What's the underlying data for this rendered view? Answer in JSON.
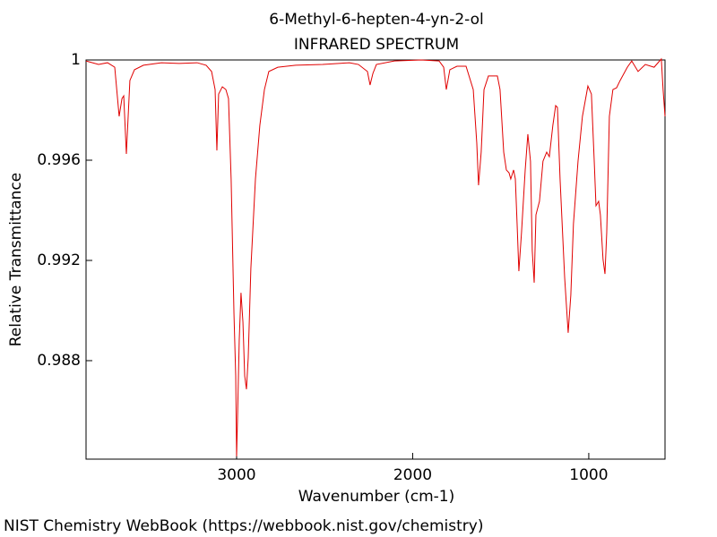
{
  "chart_data": {
    "type": "line",
    "title": "6-Methyl-6-hepten-4-yn-2-ol",
    "subtitle": "INFRARED SPECTRUM",
    "x_label": "Wavenumber (cm-1)",
    "y_label": "Relative Transmittance",
    "footer": "NIST Chemistry WebBook (https://webbook.nist.gov/chemistry)",
    "xlim": [
      3855,
      567
    ],
    "ylim": [
      0.98407,
      1
    ],
    "xticks": [
      3000,
      2000,
      1000
    ],
    "yticks": [
      0.988,
      0.992,
      0.996,
      1
    ],
    "grid": false,
    "series": [
      {
        "color": "#e00000",
        "x": [
          3855,
          3784,
          3733,
          3692,
          3667,
          3651,
          3641,
          3626,
          3606,
          3580,
          3529,
          3427,
          3326,
          3224,
          3173,
          3142,
          3122,
          3112,
          3102,
          3081,
          3061,
          3046,
          3031,
          3015,
          3005,
          3000,
          2995,
          2985,
          2975,
          2964,
          2954,
          2944,
          2934,
          2919,
          2893,
          2868,
          2842,
          2817,
          2766,
          2664,
          2511,
          2359,
          2308,
          2257,
          2242,
          2226,
          2206,
          2104,
          1952,
          1850,
          1824,
          1809,
          1789,
          1748,
          1697,
          1656,
          1636,
          1626,
          1611,
          1595,
          1570,
          1519,
          1504,
          1483,
          1468,
          1453,
          1443,
          1427,
          1417,
          1407,
          1397,
          1382,
          1361,
          1346,
          1331,
          1321,
          1310,
          1300,
          1280,
          1260,
          1239,
          1224,
          1204,
          1188,
          1178,
          1163,
          1137,
          1117,
          1102,
          1087,
          1061,
          1036,
          1005,
          985,
          969,
          959,
          944,
          934,
          919,
          908,
          898,
          883,
          863,
          842,
          822,
          781,
          756,
          720,
          679,
          629,
          598,
          588,
          578,
          567
        ],
        "values": [
          0.99996,
          0.99982,
          0.99989,
          0.99971,
          0.99775,
          0.99846,
          0.99857,
          0.99625,
          0.99918,
          0.99961,
          0.99979,
          0.99989,
          0.99986,
          0.99989,
          0.99979,
          0.99954,
          0.99882,
          0.99639,
          0.99864,
          0.99893,
          0.99882,
          0.99846,
          0.99525,
          0.98989,
          0.98739,
          0.98418,
          0.98561,
          0.98882,
          0.99071,
          0.98954,
          0.98739,
          0.98686,
          0.98811,
          0.99168,
          0.99525,
          0.99739,
          0.99882,
          0.99954,
          0.99971,
          0.99979,
          0.99982,
          0.99989,
          0.99982,
          0.99954,
          0.999,
          0.99946,
          0.99982,
          0.99996,
          1,
          0.99996,
          0.99971,
          0.99882,
          0.99961,
          0.99975,
          0.99975,
          0.99882,
          0.99668,
          0.995,
          0.99632,
          0.99882,
          0.99936,
          0.99936,
          0.99882,
          0.99632,
          0.99561,
          0.9955,
          0.99525,
          0.99561,
          0.99525,
          0.99346,
          0.99157,
          0.99311,
          0.99561,
          0.99704,
          0.99596,
          0.99239,
          0.99111,
          0.99382,
          0.99436,
          0.99596,
          0.99632,
          0.99614,
          0.99739,
          0.99818,
          0.99811,
          0.99525,
          0.99132,
          0.98911,
          0.99061,
          0.99346,
          0.99596,
          0.99775,
          0.99896,
          0.99864,
          0.99596,
          0.99418,
          0.99436,
          0.99382,
          0.99204,
          0.99146,
          0.99311,
          0.99775,
          0.99882,
          0.99889,
          0.99918,
          0.99971,
          0.99996,
          0.99954,
          0.99982,
          0.99971,
          0.99996,
          1.00004,
          0.99882,
          0.99775
        ]
      }
    ]
  }
}
